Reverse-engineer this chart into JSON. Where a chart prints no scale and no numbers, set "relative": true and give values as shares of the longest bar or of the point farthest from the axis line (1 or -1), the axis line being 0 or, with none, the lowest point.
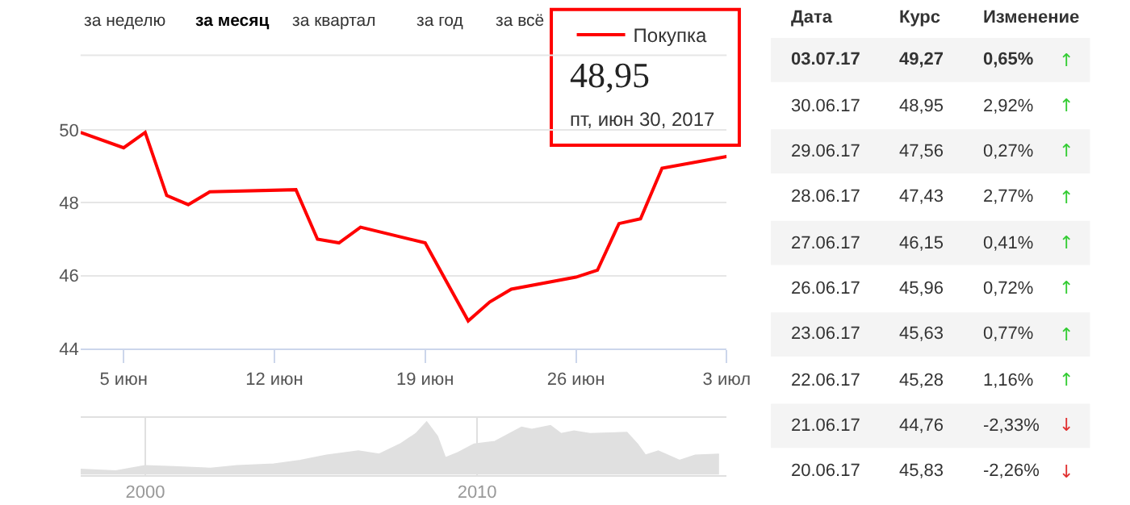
{
  "chart_data": [
    {
      "type": "line",
      "annotations": [
        "за неделю",
        "за месяц",
        "за квартал",
        "за год",
        "за всё",
        "48,95",
        "пт, июн 30, 2017"
      ],
      "x": [
        "2017-06-03",
        "2017-06-05",
        "2017-06-06",
        "2017-06-07",
        "2017-06-08",
        "2017-06-09",
        "2017-06-13",
        "2017-06-14",
        "2017-06-15",
        "2017-06-16",
        "2017-06-19",
        "2017-06-20",
        "2017-06-21",
        "2017-06-22",
        "2017-06-23",
        "2017-06-26",
        "2017-06-27",
        "2017-06-28",
        "2017-06-29",
        "2017-06-30",
        "2017-07-03"
      ],
      "series": [
        {
          "name": "Покупка",
          "color": "#ff0000",
          "values": [
            49.93,
            49.51,
            49.93,
            48.2,
            47.95,
            48.3,
            48.36,
            47.0,
            46.9,
            47.33,
            46.9,
            45.83,
            44.76,
            45.28,
            45.63,
            45.96,
            46.15,
            47.43,
            47.56,
            48.95,
            49.27
          ]
        }
      ],
      "xlim": [
        "2017-06-03",
        "2017-07-03"
      ],
      "xticks": [
        {
          "value": "2017-06-05",
          "label": "5 июн"
        },
        {
          "value": "2017-06-12",
          "label": "12 июн"
        },
        {
          "value": "2017-06-19",
          "label": "19 июн"
        },
        {
          "value": "2017-06-26",
          "label": "26 июн"
        },
        {
          "value": "2017-07-03",
          "label": "3 июл"
        }
      ],
      "ylim": [
        44,
        52.05
      ],
      "yticks": [
        44,
        46,
        48,
        50
      ],
      "grid": "y",
      "legend": "top right",
      "marker": "none",
      "line_style": "solid"
    },
    {
      "type": "other",
      "xlabel": "Дата",
      "categories": [
        "03.07.17",
        "30.06.17",
        "29.06.17",
        "28.06.17",
        "27.06.17",
        "26.06.17",
        "23.06.17",
        "22.06.17",
        "21.06.17",
        "20.06.17"
      ],
      "series": [
        {
          "name": "Курс",
          "values": [
            49.27,
            48.95,
            47.56,
            47.43,
            46.15,
            45.96,
            45.63,
            45.28,
            44.76,
            45.83
          ],
          "value_labels": [
            "49,27",
            "48,95",
            "47,56",
            "47,43",
            "46,15",
            "45,96",
            "45,63",
            "45,28",
            "44,76",
            "45,83"
          ]
        },
        {
          "name": "Изменение",
          "values": [
            0.65,
            2.92,
            0.27,
            2.77,
            0.41,
            0.72,
            0.77,
            1.16,
            -2.33,
            -2.26
          ],
          "value_labels": [
            "0,65%",
            "2,92%",
            "0,27%",
            "2,77%",
            "0,41%",
            "0,72%",
            "0,77%",
            "1,16%",
            "-2,33%",
            "-2,26%"
          ],
          "colors": [
            "#33cc33",
            "#33cc33",
            "#33cc33",
            "#33cc33",
            "#33cc33",
            "#33cc33",
            "#33cc33",
            "#33cc33",
            "#e03030",
            "#e03030"
          ]
        }
      ],
      "annotations": [
        "↑",
        "↑",
        "↑",
        "↑",
        "↑",
        "↑",
        "↑",
        "↑",
        "↓",
        "↓"
      ]
    },
    {
      "type": "area",
      "relative": true,
      "color": "#e0e0e0",
      "x": [
        1998.05,
        1999.11,
        1999.99,
        2000.86,
        2001.97,
        2002.76,
        2003.87,
        2004.67,
        2005.46,
        2006.42,
        2007.05,
        2007.68,
        2008.16,
        2008.48,
        2008.8,
        2009.04,
        2009.43,
        2009.91,
        2010.54,
        2011.34,
        2011.65,
        2012.21,
        2012.53,
        2012.92,
        2013.4,
        2014.51,
        2014.83,
        2015.07,
        2015.46,
        2016.1,
        2016.57,
        2017.29
      ],
      "values": [
        0.1,
        0.07,
        0.17,
        0.15,
        0.12,
        0.17,
        0.2,
        0.27,
        0.37,
        0.45,
        0.39,
        0.58,
        0.78,
        1,
        0.73,
        0.32,
        0.42,
        0.58,
        0.63,
        0.9,
        0.86,
        0.93,
        0.78,
        0.83,
        0.78,
        0.8,
        0.58,
        0.37,
        0.45,
        0.27,
        0.37,
        0.39
      ],
      "xlim": [
        1998.05,
        2017.52
      ],
      "xticks": [
        2000,
        2010
      ],
      "grid": "x"
    }
  ]
}
